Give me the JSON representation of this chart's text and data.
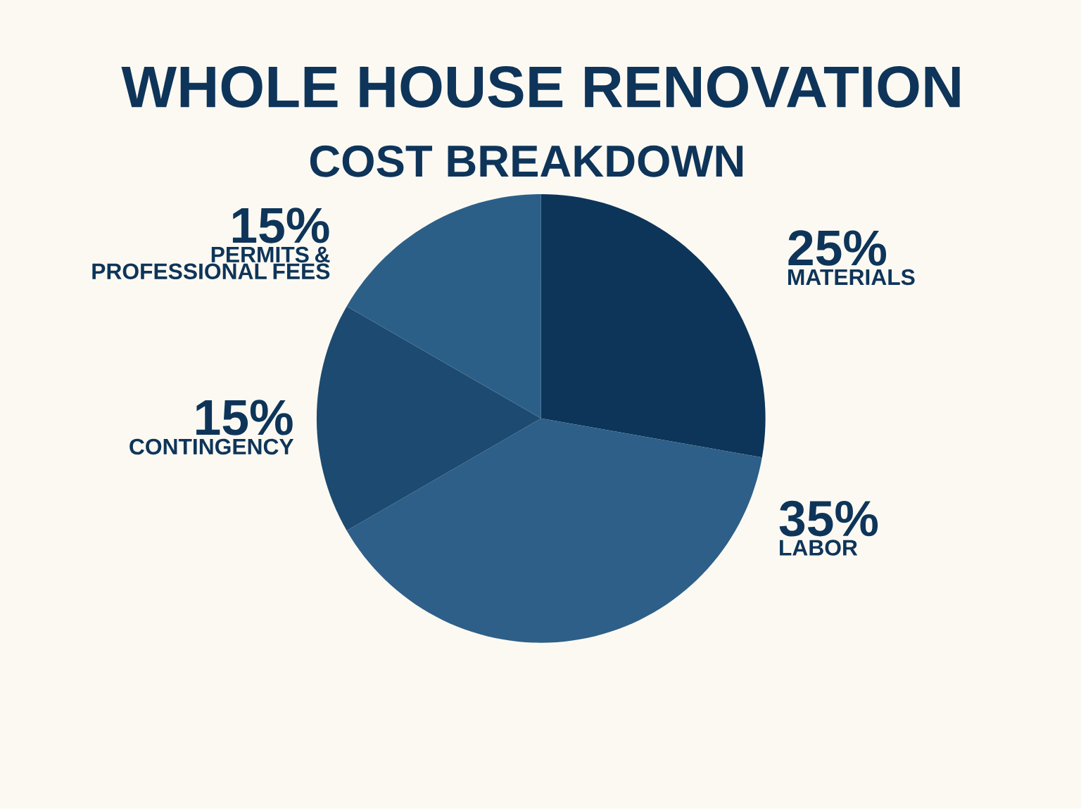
{
  "chart_data": {
    "type": "pie",
    "title": "WHOLE HOUSE RENOVATION",
    "subtitle": "COST BREAKDOWN",
    "categories": [
      "MATERIALS",
      "LABOR",
      "CONTINGENCY",
      "PERMITS & PROFESSIONAL FEES"
    ],
    "values": [
      25,
      35,
      15,
      15
    ],
    "value_labels": [
      "25%",
      "35%",
      "15%",
      "15%"
    ],
    "colors": [
      "#0d3559",
      "#2d5f88",
      "#1d4a70",
      "#2c5f88"
    ]
  }
}
